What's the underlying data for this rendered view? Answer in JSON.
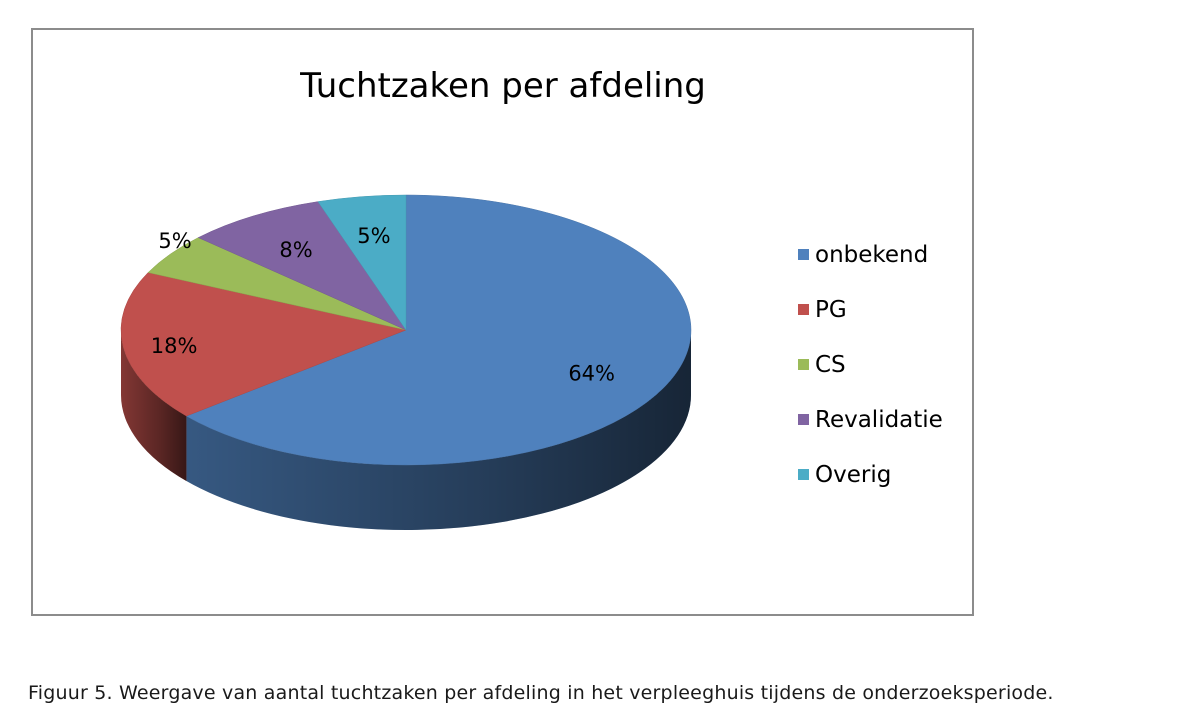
{
  "chart_data": {
    "type": "pie",
    "title": "Tuchtzaken per afdeling",
    "style": "3d",
    "legend_position": "right",
    "categories": [
      "onbekend",
      "PG",
      "CS",
      "Revalidatie",
      "Overig"
    ],
    "values": [
      64,
      18,
      5,
      8,
      5
    ],
    "labels": [
      "64%",
      "18%",
      "5%",
      "8%",
      "5%"
    ],
    "colors": [
      "#4F81BD",
      "#C0504D",
      "#9BBB59",
      "#8064A2",
      "#4BACC6"
    ]
  },
  "caption": "Figuur 5.  Weergave van aantal tuchtzaken per afdeling in het verpleeghuis tijdens de onderzoeksperiode."
}
